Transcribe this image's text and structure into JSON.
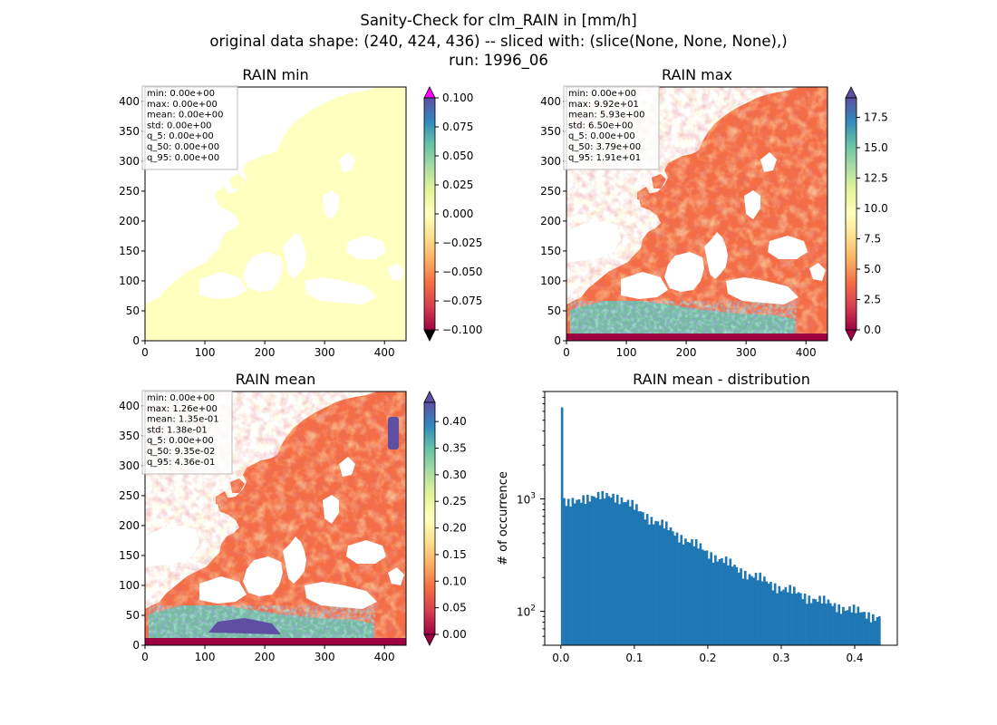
{
  "suptitle": {
    "line1": "Sanity-Check for clm_RAIN in [mm/h]",
    "line2": "original data shape: (240, 424, 436) -- sliced with: (slice(None, None, None),)",
    "line3": "run: 1996_06"
  },
  "colors": {
    "map_low": "#9e0142",
    "map_mid": "#ffffbf",
    "map_high": "#5e4fa2",
    "histogram_bar": "#1f77b4",
    "colorbar_over_min_panel": "#ff00ff",
    "colorbar_under": "#000000"
  },
  "map_panels": [
    {
      "id": "min",
      "title": "RAIN min",
      "x_ticks": [
        "0",
        "100",
        "200",
        "300",
        "400"
      ],
      "y_ticks": [
        "0",
        "50",
        "100",
        "150",
        "200",
        "250",
        "300",
        "350",
        "400"
      ],
      "stats": [
        "min: 0.00e+00",
        "max: 0.00e+00",
        "mean: 0.00e+00",
        "std: 0.00e+00",
        "q_5: 0.00e+00",
        "q_50: 0.00e+00",
        "q_95: 0.00e+00"
      ],
      "colorbar": {
        "range": [
          -0.1,
          0.1
        ],
        "ticks": [
          "0.100",
          "0.075",
          "0.050",
          "0.025",
          "0.000",
          "−0.025",
          "−0.050",
          "−0.075",
          "−0.100"
        ],
        "extend": "both"
      }
    },
    {
      "id": "max",
      "title": "RAIN max",
      "x_ticks": [
        "0",
        "100",
        "200",
        "300",
        "400"
      ],
      "y_ticks": [
        "0",
        "50",
        "100",
        "150",
        "200",
        "250",
        "300",
        "350",
        "400"
      ],
      "stats": [
        "min: 0.00e+00",
        "max: 9.92e+01",
        "mean: 5.93e+00",
        "std: 6.50e+00",
        "q_5: 0.00e+00",
        "q_50: 3.79e+00",
        "q_95: 1.91e+01"
      ],
      "colorbar": {
        "range": [
          0,
          19.1
        ],
        "ticks": [
          "17.5",
          "15.0",
          "12.5",
          "10.0",
          "7.5",
          "5.0",
          "2.5",
          "0.0"
        ],
        "extend": "both"
      }
    },
    {
      "id": "mean",
      "title": "RAIN mean",
      "x_ticks": [
        "0",
        "100",
        "200",
        "300",
        "400"
      ],
      "y_ticks": [
        "0",
        "50",
        "100",
        "150",
        "200",
        "250",
        "300",
        "350",
        "400"
      ],
      "stats": [
        "min: 0.00e+00",
        "max: 1.26e+00",
        "mean: 1.35e-01",
        "std: 1.38e-01",
        "q_5: 0.00e+00",
        "q_50: 9.35e-02",
        "q_95: 4.36e-01"
      ],
      "colorbar": {
        "range": [
          0,
          0.436
        ],
        "ticks": [
          "0.40",
          "0.35",
          "0.30",
          "0.25",
          "0.20",
          "0.15",
          "0.10",
          "0.05",
          "0.00"
        ],
        "extend": "both"
      }
    }
  ],
  "chart_data": {
    "type": "bar",
    "title": "RAIN mean - distribution",
    "xlabel": "",
    "ylabel": "# of occurrence",
    "xlim": [
      -0.022,
      0.458
    ],
    "ylim": [
      50,
      9000
    ],
    "y_scale": "log",
    "x_ticks": [
      "0.0",
      "0.1",
      "0.2",
      "0.3",
      "0.4"
    ],
    "y_tick_labels": [
      {
        "base": "10",
        "exp": "2",
        "value": 100
      },
      {
        "base": "10",
        "exp": "3",
        "value": 1000
      }
    ],
    "bin_width": 0.0029,
    "histogram_curve": [
      {
        "x": 0.0,
        "y": 6500
      },
      {
        "x": 0.003,
        "y": 900
      },
      {
        "x": 0.01,
        "y": 880
      },
      {
        "x": 0.02,
        "y": 950
      },
      {
        "x": 0.03,
        "y": 1050
      },
      {
        "x": 0.04,
        "y": 1050
      },
      {
        "x": 0.055,
        "y": 1030
      },
      {
        "x": 0.07,
        "y": 1080
      },
      {
        "x": 0.08,
        "y": 1020
      },
      {
        "x": 0.1,
        "y": 820
      },
      {
        "x": 0.13,
        "y": 620
      },
      {
        "x": 0.16,
        "y": 470
      },
      {
        "x": 0.2,
        "y": 330
      },
      {
        "x": 0.25,
        "y": 220
      },
      {
        "x": 0.3,
        "y": 160
      },
      {
        "x": 0.35,
        "y": 125
      },
      {
        "x": 0.4,
        "y": 100
      },
      {
        "x": 0.435,
        "y": 88
      }
    ]
  }
}
